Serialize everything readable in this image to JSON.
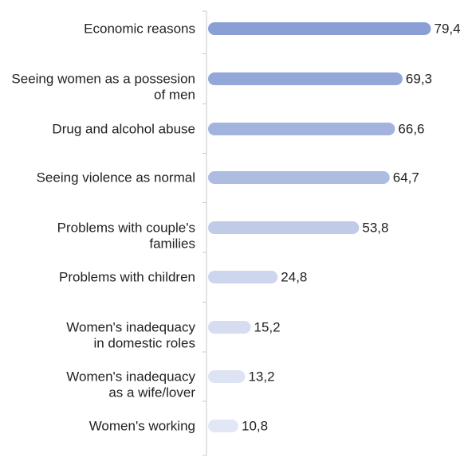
{
  "chart_data": {
    "type": "bar",
    "orientation": "horizontal",
    "categories": [
      [
        "Economic reasons"
      ],
      [
        "Seeing women as a possesion",
        "of men"
      ],
      [
        "Drug and alcohol abuse"
      ],
      [
        "Seeing violence as normal"
      ],
      [
        "Problems with couple's",
        "families"
      ],
      [
        "Problems with children"
      ],
      [
        "Women's inadequacy",
        "in domestic roles"
      ],
      [
        "Women's inadequacy",
        "as a wife/lover"
      ],
      [
        "Women's working"
      ]
    ],
    "values": [
      79.4,
      69.3,
      66.6,
      64.7,
      53.8,
      24.8,
      15.2,
      13.2,
      10.8
    ],
    "value_labels": [
      "79,4",
      "69,3",
      "66,6",
      "64,7",
      "53,8",
      "24,8",
      "15,2",
      "13,2",
      "10,8"
    ],
    "xlim": [
      0,
      80
    ],
    "grid": false,
    "legend": "none",
    "colors": {
      "bars": [
        "#8a9fd6",
        "#93a7d9",
        "#a2b3de",
        "#adbde2",
        "#bfcbe7",
        "#cdd6ee",
        "#d6ddf1",
        "#dde3f3",
        "#e2e7f5"
      ],
      "axis": "#c8c8c8",
      "text": "#222222"
    }
  }
}
